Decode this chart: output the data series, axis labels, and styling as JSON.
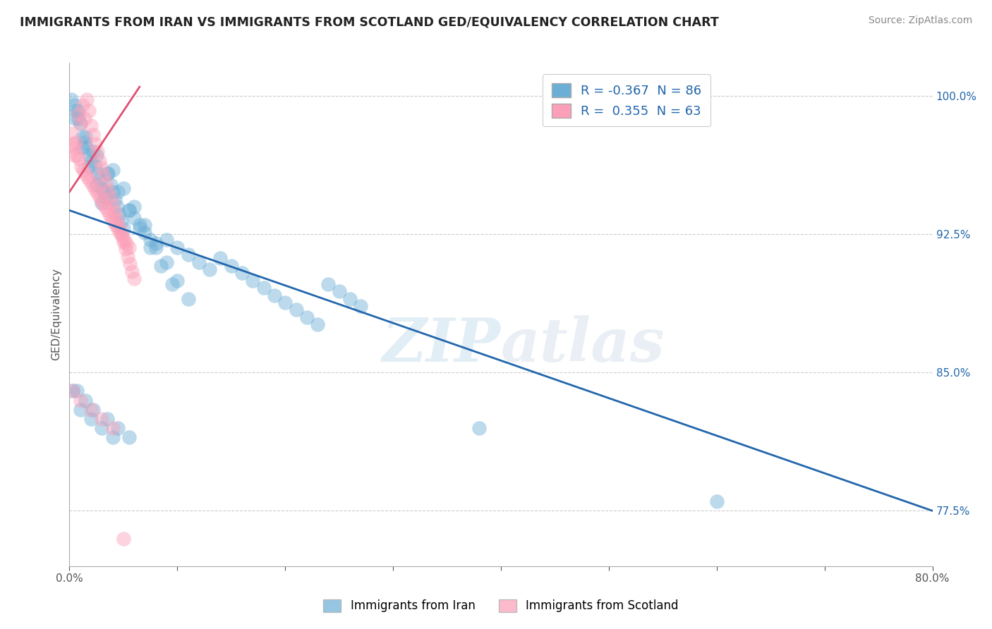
{
  "title": "IMMIGRANTS FROM IRAN VS IMMIGRANTS FROM SCOTLAND GED/EQUIVALENCY CORRELATION CHART",
  "source": "Source: ZipAtlas.com",
  "xlabel_blue": "Immigrants from Iran",
  "xlabel_pink": "Immigrants from Scotland",
  "ylabel": "GED/Equivalency",
  "watermark": "ZIPAtlas",
  "xlim": [
    0.0,
    0.8
  ],
  "ylim": [
    0.745,
    1.018
  ],
  "yticks": [
    0.775,
    0.85,
    0.925,
    1.0
  ],
  "yticklabels": [
    "77.5%",
    "85.0%",
    "92.5%",
    "100.0%"
  ],
  "legend_blue_R": "-0.367",
  "legend_blue_N": "86",
  "legend_pink_R": "0.355",
  "legend_pink_N": "63",
  "blue_color": "#6baed6",
  "pink_color": "#fc9fb8",
  "blue_line_color": "#2166ac",
  "pink_line_color": "#e05070",
  "blue_line_x": [
    0.0,
    0.8
  ],
  "blue_line_y": [
    0.938,
    0.775
  ],
  "pink_line_x": [
    0.0,
    0.065
  ],
  "pink_line_y": [
    0.948,
    1.005
  ],
  "blue_scatter_x": [
    0.005,
    0.008,
    0.01,
    0.012,
    0.014,
    0.016,
    0.018,
    0.02,
    0.022,
    0.024,
    0.026,
    0.028,
    0.03,
    0.032,
    0.034,
    0.036,
    0.038,
    0.04,
    0.042,
    0.044,
    0.046,
    0.048,
    0.05,
    0.055,
    0.06,
    0.065,
    0.07,
    0.075,
    0.08,
    0.09,
    0.1,
    0.11,
    0.12,
    0.13,
    0.14,
    0.15,
    0.16,
    0.17,
    0.18,
    0.19,
    0.2,
    0.21,
    0.22,
    0.23,
    0.24,
    0.25,
    0.26,
    0.27,
    0.012,
    0.018,
    0.025,
    0.03,
    0.04,
    0.05,
    0.06,
    0.07,
    0.08,
    0.09,
    0.1,
    0.11,
    0.007,
    0.015,
    0.022,
    0.035,
    0.045,
    0.055,
    0.01,
    0.02,
    0.03,
    0.04,
    0.002,
    0.004,
    0.006,
    0.008,
    0.003,
    0.38,
    0.6,
    0.015,
    0.025,
    0.035,
    0.045,
    0.055,
    0.065,
    0.075,
    0.085,
    0.095
  ],
  "blue_scatter_y": [
    0.988,
    0.992,
    0.985,
    0.978,
    0.975,
    0.972,
    0.968,
    0.965,
    0.97,
    0.962,
    0.958,
    0.955,
    0.95,
    0.948,
    0.945,
    0.958,
    0.952,
    0.948,
    0.944,
    0.94,
    0.936,
    0.932,
    0.928,
    0.938,
    0.934,
    0.93,
    0.926,
    0.922,
    0.918,
    0.922,
    0.918,
    0.914,
    0.91,
    0.906,
    0.912,
    0.908,
    0.904,
    0.9,
    0.896,
    0.892,
    0.888,
    0.884,
    0.88,
    0.876,
    0.898,
    0.894,
    0.89,
    0.886,
    0.972,
    0.962,
    0.952,
    0.942,
    0.96,
    0.95,
    0.94,
    0.93,
    0.92,
    0.91,
    0.9,
    0.89,
    0.84,
    0.835,
    0.83,
    0.825,
    0.82,
    0.815,
    0.83,
    0.825,
    0.82,
    0.815,
    0.998,
    0.995,
    0.992,
    0.988,
    0.84,
    0.82,
    0.78,
    0.978,
    0.968,
    0.958,
    0.948,
    0.938,
    0.928,
    0.918,
    0.908,
    0.898
  ],
  "pink_scatter_x": [
    0.002,
    0.004,
    0.006,
    0.008,
    0.01,
    0.012,
    0.014,
    0.016,
    0.018,
    0.02,
    0.022,
    0.024,
    0.026,
    0.028,
    0.03,
    0.032,
    0.034,
    0.036,
    0.038,
    0.04,
    0.042,
    0.044,
    0.046,
    0.048,
    0.05,
    0.052,
    0.054,
    0.056,
    0.058,
    0.06,
    0.003,
    0.007,
    0.011,
    0.015,
    0.019,
    0.023,
    0.027,
    0.031,
    0.035,
    0.039,
    0.043,
    0.047,
    0.051,
    0.055,
    0.005,
    0.009,
    0.013,
    0.017,
    0.021,
    0.025,
    0.029,
    0.033,
    0.037,
    0.041,
    0.045,
    0.049,
    0.053,
    0.003,
    0.01,
    0.02,
    0.03,
    0.04,
    0.05
  ],
  "pink_scatter_y": [
    0.98,
    0.968,
    0.975,
    0.99,
    0.985,
    0.995,
    0.988,
    0.998,
    0.992,
    0.984,
    0.979,
    0.974,
    0.97,
    0.965,
    0.961,
    0.957,
    0.953,
    0.949,
    0.945,
    0.941,
    0.937,
    0.933,
    0.929,
    0.925,
    0.921,
    0.917,
    0.913,
    0.909,
    0.905,
    0.901,
    0.974,
    0.968,
    0.962,
    0.958,
    0.954,
    0.95,
    0.946,
    0.942,
    0.938,
    0.934,
    0.93,
    0.926,
    0.922,
    0.918,
    0.972,
    0.966,
    0.96,
    0.956,
    0.952,
    0.948,
    0.944,
    0.94,
    0.936,
    0.932,
    0.928,
    0.924,
    0.92,
    0.84,
    0.835,
    0.83,
    0.825,
    0.82,
    0.76
  ]
}
